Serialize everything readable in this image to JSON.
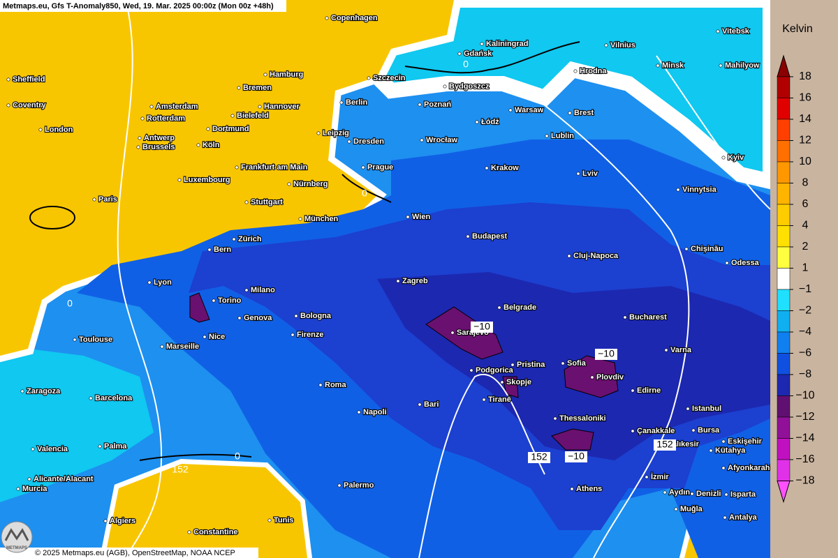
{
  "header": {
    "title": "Metmaps.eu, Gfs T-Anomaly850, Wed, 19. Mar. 2025 00:00z (Mon 00z +48h)"
  },
  "cities": [
    "Copenhagen",
    "Kaliningrad",
    "Vitebsk",
    "Vilnius",
    "Gdańsk",
    "Minsk",
    "Mahilyow",
    "Sheffield",
    "Hamburg",
    "Szczecin",
    "Hrodna",
    "Bremen",
    "Bydgoszcz",
    "Coventry",
    "Amsterdam",
    "Hannover",
    "Berlin",
    "Poznań",
    "Warsaw",
    "Brest",
    "Rotterdam",
    "Bielefeld",
    "Łódź",
    "London",
    "Dortmund",
    "Leipzig",
    "Lublin",
    "Antwerp",
    "Wrocław",
    "Dresden",
    "Brussels",
    "Köln",
    "Kyiv",
    "Frankfurt am Main",
    "Prague",
    "Krakow",
    "Lviv",
    "Luxembourg",
    "Nürnberg",
    "Vinnytsia",
    "Paris",
    "Stuttgart",
    "Wien",
    "München",
    "Budapest",
    "Zürich",
    "Chișinău",
    "Bern",
    "Cluj-Napoca",
    "Odessa",
    "Lyon",
    "Zagreb",
    "Milano",
    "Torino",
    "Belgrade",
    "Genova",
    "Bologna",
    "Bucharest",
    "Sarajevo",
    "Firenze",
    "Toulouse",
    "Nice",
    "Marseille",
    "Varna",
    "Pristina",
    "Sofia",
    "Podgorica",
    "Plovdiv",
    "Skopje",
    "Roma",
    "Edirne",
    "Zaragoza",
    "Barcelona",
    "Tiranë",
    "Bari",
    "Istanbul",
    "Napoli",
    "Thessaloniki",
    "Bursa",
    "Çanakkale",
    "Eskişehir",
    "Valencia",
    "Palma",
    "Balıkesir",
    "Kütahya",
    "Afyonkarahisar",
    "Alicante/Alacant",
    "İzmir",
    "Murcia",
    "Palermo",
    "Athens",
    "Aydın",
    "Denizli",
    "Isparta",
    "Algiers",
    "Tunis",
    "Muğla",
    "Antalya",
    "Constantine"
  ],
  "contour_labels": [
    "0",
    "0",
    "0",
    "0",
    "152",
    "152",
    "152",
    "−10",
    "−10",
    "−10"
  ],
  "legend": {
    "title": "Kelvin",
    "ticks": [
      18,
      16,
      14,
      12,
      10,
      8,
      6,
      4,
      2,
      1,
      {
        "value": -1,
        "label": "−1"
      },
      {
        "value": -2,
        "label": "−2"
      },
      {
        "value": -4,
        "label": "−4"
      },
      {
        "value": -6,
        "label": "−6"
      },
      {
        "value": -8,
        "label": "−8"
      },
      {
        "value": -10,
        "label": "−10"
      },
      {
        "value": -12,
        "label": "−12"
      },
      {
        "value": -14,
        "label": "−14"
      },
      {
        "value": -16,
        "label": "−16"
      },
      {
        "value": -18,
        "label": "−18"
      }
    ],
    "colors": [
      "#8b0000",
      "#b00000",
      "#e00000",
      "#ff4000",
      "#ff7000",
      "#ff9800",
      "#ffb400",
      "#ffcc00",
      "#ffe000",
      "#ffff40",
      "#ffffff",
      "#20e0ff",
      "#10b0f0",
      "#1080f0",
      "#1050e0",
      "#1c28b0",
      "#601070",
      "#901098",
      "#c010c0",
      "#e030e8",
      "#ff50ff"
    ]
  },
  "footer": {
    "copyright": "© 2025 Metmaps.eu (AGB), OpenStreetMap, NOAA NCEP",
    "logo": "METMAPS"
  }
}
